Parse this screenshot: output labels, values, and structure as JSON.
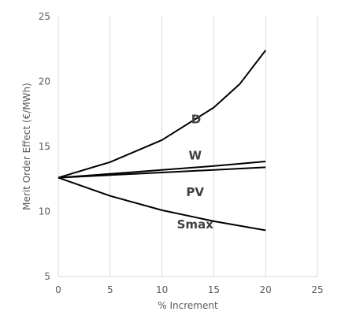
{
  "chart_data": {
    "type": "line",
    "title": "",
    "xlabel": "% Increment",
    "ylabel": "Merit Order Effect (€/MWh)",
    "xlim": [
      0,
      25
    ],
    "ylim": [
      5,
      25
    ],
    "xticks": [
      0,
      5,
      10,
      15,
      20,
      25
    ],
    "yticks": [
      5,
      10,
      15,
      20,
      25
    ],
    "grid": "vertical",
    "legend": "none",
    "series": [
      {
        "name": "D",
        "x": [
          0,
          5,
          10,
          15,
          17.5,
          20
        ],
        "y": [
          12.6,
          13.8,
          15.5,
          18.0,
          19.8,
          22.4
        ],
        "label_at": [
          13.3,
          17.1
        ]
      },
      {
        "name": "W",
        "x": [
          0,
          5,
          10,
          15,
          20
        ],
        "y": [
          12.6,
          12.9,
          13.2,
          13.5,
          13.85
        ],
        "label_at": [
          13.2,
          14.3
        ]
      },
      {
        "name": "PV",
        "x": [
          0,
          5,
          10,
          15,
          20
        ],
        "y": [
          12.6,
          12.8,
          13.0,
          13.2,
          13.4
        ],
        "label_at": [
          13.2,
          11.5
        ]
      },
      {
        "name": "Smax",
        "x": [
          0,
          5,
          10,
          15,
          20
        ],
        "y": [
          12.6,
          11.2,
          10.1,
          9.25,
          8.55
        ],
        "label_at": [
          13.2,
          9.0
        ]
      }
    ]
  }
}
